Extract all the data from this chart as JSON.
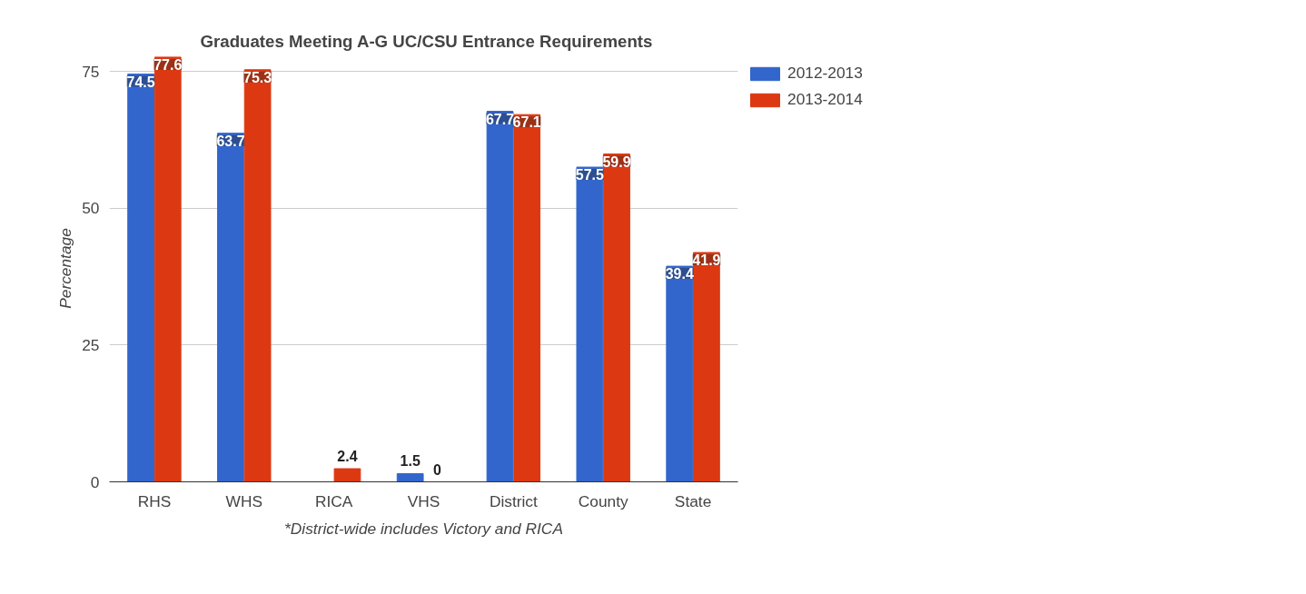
{
  "chart_data": {
    "type": "bar",
    "title": "Graduates Meeting A-G UC/CSU Entrance Requirements",
    "ylabel": "Percentage",
    "categories": [
      "RHS",
      "WHS",
      "RICA",
      "VHS",
      "District",
      "County",
      "State"
    ],
    "series": [
      {
        "name": "2012-2013",
        "color": "#3366cc",
        "values": [
          74.5,
          63.7,
          null,
          1.5,
          67.7,
          57.5,
          39.4
        ]
      },
      {
        "name": "2013-2014",
        "color": "#dc3912",
        "values": [
          77.6,
          75.3,
          2.4,
          0,
          67.1,
          59.9,
          41.9
        ]
      }
    ],
    "ylim": [
      0,
      78
    ],
    "yticks": [
      0,
      25,
      50,
      75
    ],
    "grid": "y",
    "legend": "top right",
    "data_labels": true,
    "annotations": [
      "*District-wide includes Victory and RICA"
    ]
  }
}
